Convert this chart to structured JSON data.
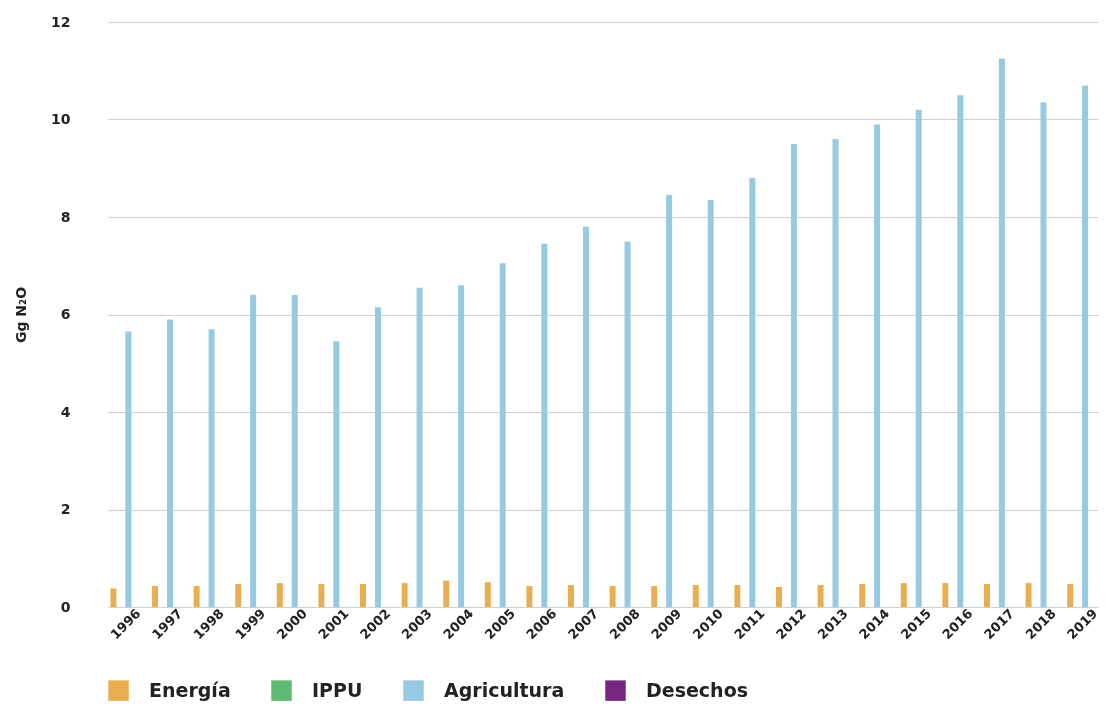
{
  "chart_data": {
    "type": "bar",
    "ylabel": "Gg N₂O",
    "categories": [
      "1996",
      "1997",
      "1998",
      "1999",
      "2000",
      "2001",
      "2002",
      "2003",
      "2004",
      "2005",
      "2006",
      "2007",
      "2008",
      "2009",
      "2010",
      "2011",
      "2012",
      "2013",
      "2014",
      "2015",
      "2016",
      "2017",
      "2018",
      "2019"
    ],
    "series": [
      {
        "name": "Energía",
        "color": "#e8ae4f",
        "values": [
          0.38,
          0.43,
          0.43,
          0.47,
          0.49,
          0.47,
          0.47,
          0.49,
          0.54,
          0.51,
          0.43,
          0.45,
          0.43,
          0.43,
          0.45,
          0.45,
          0.41,
          0.45,
          0.47,
          0.49,
          0.49,
          0.47,
          0.49,
          0.47
        ]
      },
      {
        "name": "IPPU",
        "color": "#5fbb73",
        "values": [
          0,
          0,
          0,
          0,
          0,
          0,
          0,
          0,
          0,
          0,
          0,
          0,
          0,
          0,
          0,
          0,
          0,
          0,
          0,
          0,
          0,
          0,
          0,
          0
        ]
      },
      {
        "name": "Agricultura",
        "color": "#96cae3",
        "values": [
          5.65,
          5.9,
          5.7,
          6.4,
          6.4,
          5.45,
          6.15,
          6.55,
          6.6,
          7.05,
          7.45,
          7.8,
          7.5,
          8.45,
          8.35,
          8.8,
          9.5,
          9.6,
          9.9,
          10.2,
          10.5,
          11.25,
          10.35,
          10.7
        ]
      },
      {
        "name": "Desechos",
        "color": "#76277f",
        "values": [
          0,
          0,
          0,
          0,
          0,
          0,
          0,
          0,
          0,
          0,
          0,
          0,
          0,
          0,
          0,
          0,
          0,
          0,
          0,
          0,
          0,
          0,
          0,
          0
        ]
      }
    ],
    "ylim": [
      0,
      12
    ],
    "yticks": [
      0,
      2,
      4,
      6,
      8,
      10,
      12
    ],
    "grid": "y",
    "legend": "bottom"
  }
}
